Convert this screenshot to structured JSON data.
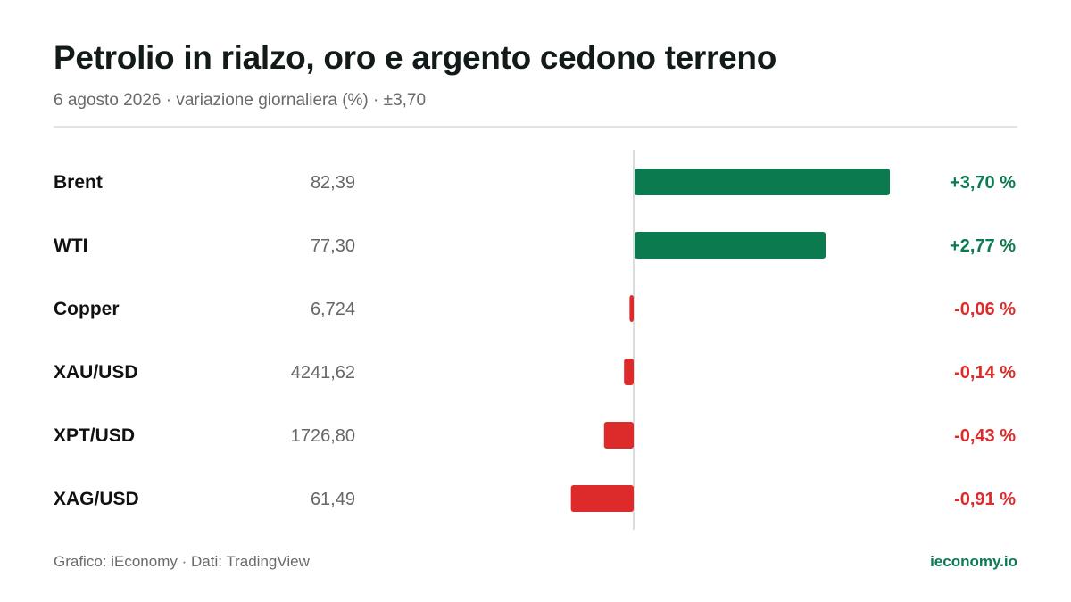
{
  "title": "Petrolio in rialzo, oro e argento cedono terreno",
  "subtitle": "6 agosto 2026 · variazione giornaliera (%) · ±3,70",
  "footer": {
    "source": "Grafico: iEconomy · Dati: TradingView",
    "brand": "ieconomy.io"
  },
  "colors": {
    "positive": "#0b7a4f",
    "negative": "#dd2a2a",
    "axis": "#dcdcdc"
  },
  "chart_data": {
    "type": "bar",
    "orientation": "horizontal",
    "categories": [
      "Brent",
      "WTI",
      "Copper",
      "XAU/USD",
      "XPT/USD",
      "XAG/USD"
    ],
    "prices": [
      "82,39",
      "77,30",
      "6,724",
      "4241,62",
      "1726,80",
      "61,49"
    ],
    "values": [
      3.7,
      2.77,
      -0.06,
      -0.14,
      -0.43,
      -0.91
    ],
    "value_labels": [
      "+3,70 %",
      "+2,77 %",
      "-0,06 %",
      "-0,14 %",
      "-0,43 %",
      "-0,91 %"
    ],
    "xlim": [
      -3.7,
      3.7
    ],
    "grid": false
  }
}
